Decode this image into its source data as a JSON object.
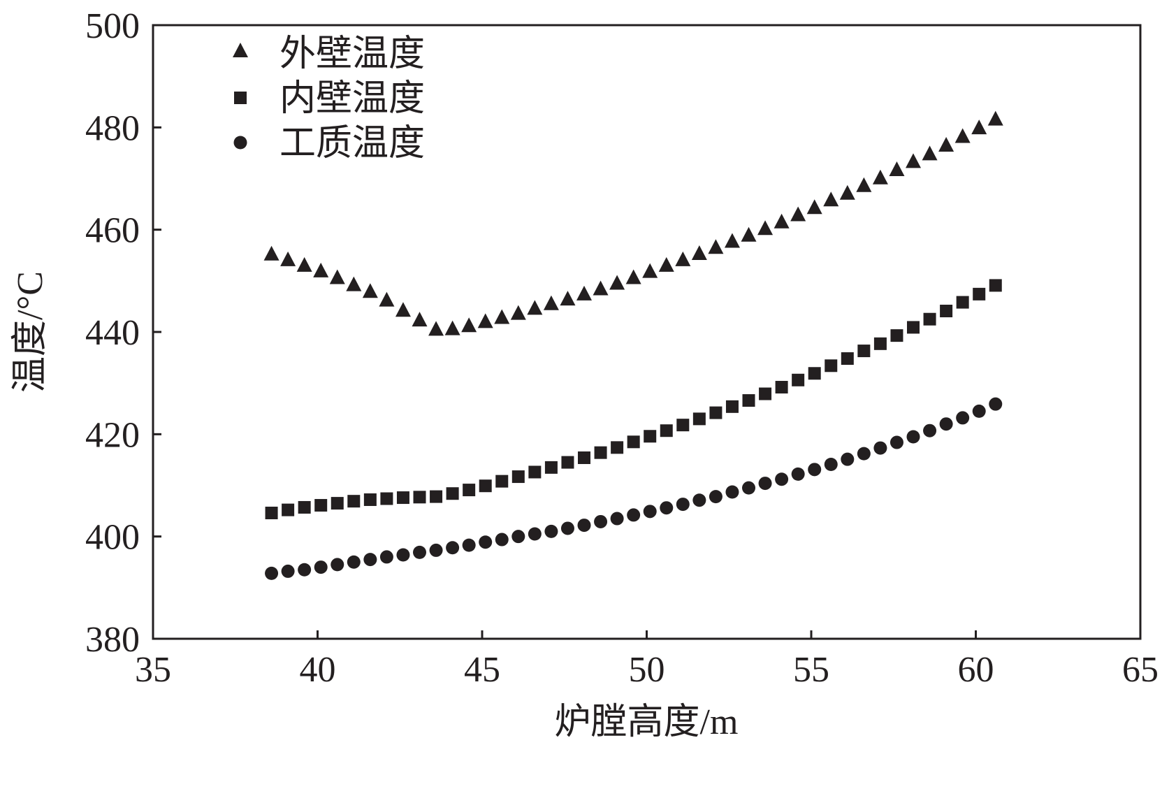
{
  "chart_data": {
    "type": "scatter",
    "xlabel": "炉膛高度/m",
    "ylabel": "温度/°C",
    "xlim": [
      35,
      65
    ],
    "ylim": [
      380,
      500
    ],
    "xticks": [
      35,
      40,
      45,
      50,
      55,
      60,
      65
    ],
    "yticks": [
      380,
      400,
      420,
      440,
      460,
      480,
      500
    ],
    "grid": false,
    "legend": "top-left",
    "x": [
      38.6,
      39.1,
      39.6,
      40.1,
      40.6,
      41.1,
      41.6,
      42.1,
      42.6,
      43.1,
      43.6,
      44.1,
      44.6,
      45.1,
      45.6,
      46.1,
      46.6,
      47.1,
      47.6,
      48.1,
      48.6,
      49.1,
      49.6,
      50.1,
      50.6,
      51.1,
      51.6,
      52.1,
      52.6,
      53.1,
      53.6,
      54.1,
      54.6,
      55.1,
      55.6,
      56.1,
      56.6,
      57.1,
      57.6,
      58.1,
      58.6,
      59.1,
      59.6,
      60.1,
      60.6
    ],
    "series": [
      {
        "name": "外壁温度",
        "marker": "triangle",
        "color": "#231f20",
        "values": [
          455.2,
          454.1,
          453.0,
          451.9,
          450.6,
          449.2,
          447.9,
          446.2,
          444.2,
          442.3,
          440.5,
          440.6,
          441.2,
          442.0,
          442.8,
          443.6,
          444.6,
          445.5,
          446.4,
          447.4,
          448.4,
          449.5,
          450.6,
          451.8,
          453.0,
          454.1,
          455.3,
          456.5,
          457.7,
          458.9,
          460.2,
          461.5,
          462.9,
          464.3,
          465.8,
          467.1,
          468.6,
          470.1,
          471.7,
          473.3,
          474.8,
          476.5,
          478.2,
          479.9,
          481.6
        ]
      },
      {
        "name": "内壁温度",
        "marker": "square",
        "color": "#231f20",
        "values": [
          404.6,
          405.2,
          405.7,
          406.1,
          406.5,
          406.9,
          407.2,
          407.4,
          407.6,
          407.7,
          407.8,
          408.4,
          409.1,
          409.9,
          410.8,
          411.7,
          412.6,
          413.5,
          414.5,
          415.4,
          416.4,
          417.4,
          418.5,
          419.6,
          420.7,
          421.8,
          423.0,
          424.2,
          425.4,
          426.6,
          427.9,
          429.2,
          430.6,
          431.9,
          433.4,
          434.8,
          436.3,
          437.7,
          439.3,
          440.9,
          442.5,
          444.1,
          445.8,
          447.4,
          449.1
        ]
      },
      {
        "name": "工质温度",
        "marker": "circle",
        "color": "#231f20",
        "values": [
          392.8,
          393.2,
          393.5,
          394.0,
          394.5,
          395.0,
          395.5,
          396.0,
          396.4,
          396.9,
          397.3,
          397.8,
          398.3,
          398.9,
          399.4,
          400.0,
          400.5,
          401.0,
          401.6,
          402.2,
          402.9,
          403.5,
          404.2,
          404.9,
          405.6,
          406.3,
          407.1,
          407.8,
          408.7,
          409.5,
          410.4,
          411.2,
          412.2,
          413.1,
          414.1,
          415.1,
          416.2,
          417.3,
          418.4,
          419.5,
          420.7,
          422.0,
          423.2,
          424.5,
          425.9
        ]
      }
    ]
  }
}
